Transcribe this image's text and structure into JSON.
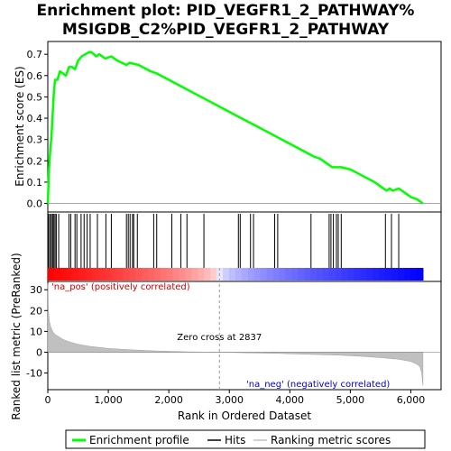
{
  "title_line1": "Enrichment plot: PID_VEGFR1_2_PATHWAY%",
  "title_line2": "MSIGDB_C2%PID_VEGFR1_2_PATHWAY",
  "chart_data": [
    {
      "type": "line",
      "ylabel": "Enrichment score (ES)",
      "xlim": [
        0,
        6500
      ],
      "ylim": [
        -0.04,
        0.76
      ],
      "yticks": [
        0.0,
        0.1,
        0.2,
        0.3,
        0.4,
        0.5,
        0.6,
        0.7
      ],
      "ytick_labels": [
        "0.0",
        "0.1",
        "0.2",
        "0.3",
        "0.4",
        "0.5",
        "0.6",
        "0.7"
      ],
      "grid": false,
      "series": [
        {
          "name": "Enrichment profile",
          "color": "#00ff00",
          "x": [
            0,
            20,
            40,
            60,
            80,
            100,
            120,
            160,
            200,
            300,
            350,
            400,
            450,
            500,
            560,
            620,
            680,
            720,
            800,
            850,
            950,
            1050,
            1150,
            1300,
            1350,
            1500,
            1700,
            1800,
            2000,
            2200,
            2400,
            2600,
            2800,
            3000,
            3200,
            3400,
            3600,
            3800,
            4000,
            4200,
            4400,
            4500,
            4600,
            4650,
            4700,
            4800,
            4850,
            5000,
            5200,
            5400,
            5500,
            5600,
            5650,
            5700,
            5800,
            5900,
            6000,
            6100,
            6200
          ],
          "y": [
            0.0,
            0.16,
            0.25,
            0.31,
            0.42,
            0.52,
            0.58,
            0.58,
            0.62,
            0.6,
            0.64,
            0.64,
            0.63,
            0.67,
            0.69,
            0.7,
            0.71,
            0.71,
            0.69,
            0.7,
            0.68,
            0.69,
            0.67,
            0.65,
            0.66,
            0.65,
            0.62,
            0.61,
            0.58,
            0.55,
            0.52,
            0.49,
            0.46,
            0.43,
            0.4,
            0.37,
            0.34,
            0.31,
            0.28,
            0.25,
            0.22,
            0.21,
            0.19,
            0.18,
            0.17,
            0.17,
            0.17,
            0.16,
            0.13,
            0.1,
            0.08,
            0.06,
            0.07,
            0.06,
            0.07,
            0.05,
            0.03,
            0.02,
            0.0
          ]
        }
      ],
      "hits": [
        15,
        40,
        60,
        80,
        100,
        120,
        140,
        180,
        350,
        380,
        450,
        480,
        550,
        600,
        650,
        700,
        820,
        960,
        1050,
        1300,
        1330,
        1360,
        1400,
        1420,
        1480,
        1750,
        1800,
        2050,
        2200,
        2300,
        2580,
        3150,
        3180,
        3350,
        3400,
        3750,
        3800,
        4350,
        4650,
        4680,
        4720,
        4770,
        4800,
        4850,
        5580,
        5680,
        5800
      ]
    },
    {
      "type": "area",
      "xlabel": "Rank in Ordered Dataset",
      "ylabel": "Ranked list metric (PreRanked)",
      "xlim": [
        0,
        6500
      ],
      "ylim": [
        -18,
        34
      ],
      "xticks": [
        0,
        1000,
        2000,
        3000,
        4000,
        5000,
        6000
      ],
      "xtick_labels": [
        "0",
        "1,000",
        "2,000",
        "3,000",
        "4,000",
        "5,000",
        "6,000"
      ],
      "yticks": [
        -10,
        0,
        10,
        20,
        30
      ],
      "ytick_labels": [
        "-10",
        "0",
        "10",
        "20",
        "30"
      ],
      "zero_cross": 2837,
      "annotations": {
        "positive": "'na_pos' (positively correlated)",
        "negative": "'na_neg' (negatively correlated)",
        "zero_cross": "Zero cross at 2837"
      },
      "series": [
        {
          "name": "Ranking metric scores",
          "color": "#c0c0c0",
          "x": [
            0,
            10,
            25,
            50,
            80,
            120,
            180,
            250,
            350,
            500,
            700,
            1000,
            1400,
            1800,
            2300,
            2837,
            3300,
            3800,
            4300,
            4800,
            5200,
            5500,
            5800,
            6000,
            6100,
            6150,
            6180,
            6200
          ],
          "y": [
            33,
            20,
            15,
            12,
            10,
            8.5,
            7.5,
            6.2,
            5,
            3.8,
            2.8,
            1.8,
            1.1,
            0.6,
            0.2,
            0,
            -0.3,
            -0.6,
            -1.0,
            -1.4,
            -2.0,
            -2.6,
            -3.4,
            -4.5,
            -5.8,
            -7.0,
            -10.0,
            -16.0
          ]
        }
      ]
    }
  ],
  "legend": {
    "items": [
      {
        "label": "Enrichment profile",
        "color": "#00ff00"
      },
      {
        "label": "Hits",
        "color": "#000000"
      },
      {
        "label": "Ranking metric scores",
        "color": "#c0c0c0"
      }
    ]
  }
}
